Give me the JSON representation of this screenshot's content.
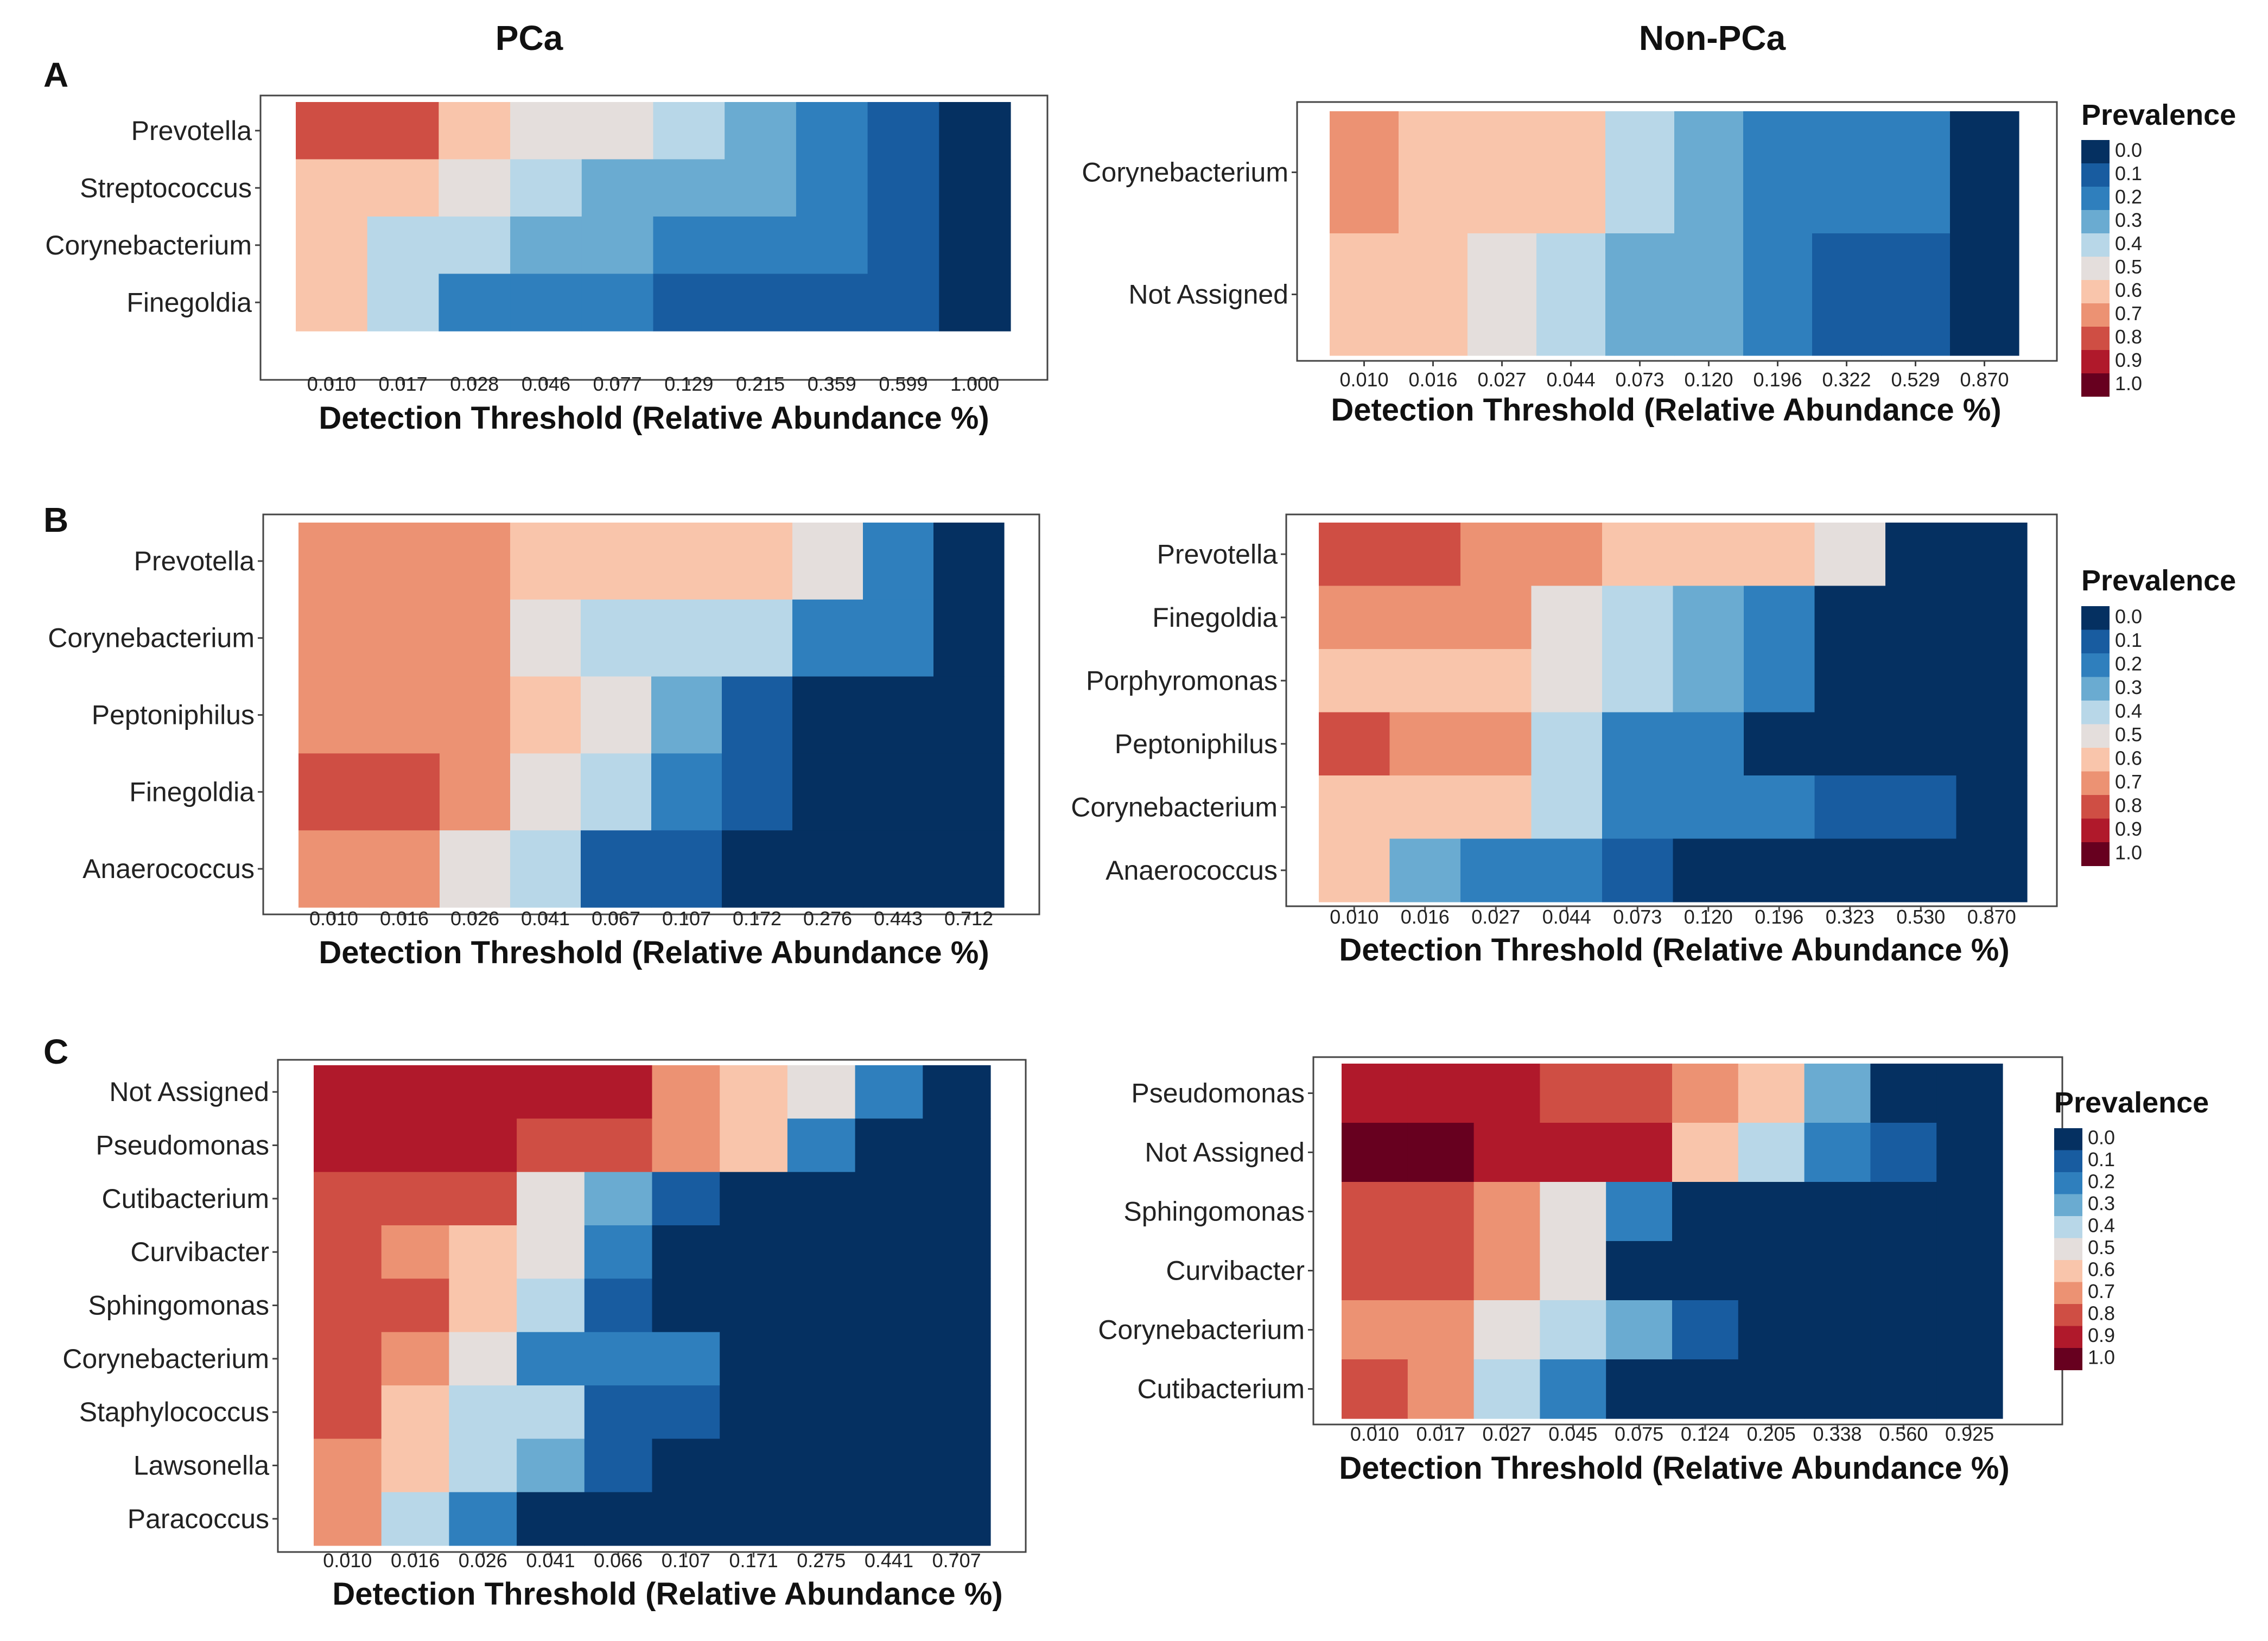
{
  "column_titles": [
    "PCa",
    "Non-PCa"
  ],
  "panel_letters": [
    "A",
    "B",
    "C"
  ],
  "palette": [
    "#053061",
    "#185ca0",
    "#2f7fbd",
    "#6aabd1",
    "#b8d7e8",
    "#e4dedc",
    "#f9c5ab",
    "#ec9273",
    "#cf4e44",
    "#b0192b",
    "#67001f"
  ],
  "chart_data": [
    {
      "type": "heatmap",
      "panel": "A",
      "group": "PCa",
      "xlabel": "Detection Threshold (Relative Abundance %)",
      "categories": [
        "0.010",
        "0.017",
        "0.028",
        "0.046",
        "0.077",
        "0.129",
        "0.215",
        "0.359",
        "0.599",
        "1.000"
      ],
      "rows": [
        "Prevotella",
        "Streptococcus",
        "Corynebacterium",
        "Finegoldia"
      ],
      "values": [
        [
          0.8,
          0.8,
          0.6,
          0.5,
          0.5,
          0.4,
          0.3,
          0.2,
          0.1,
          0.0
        ],
        [
          0.6,
          0.6,
          0.5,
          0.4,
          0.3,
          0.3,
          0.3,
          0.2,
          0.1,
          0.0
        ],
        [
          0.6,
          0.4,
          0.4,
          0.3,
          0.3,
          0.2,
          0.2,
          0.2,
          0.1,
          0.0
        ],
        [
          0.6,
          0.4,
          0.2,
          0.2,
          0.2,
          0.1,
          0.1,
          0.1,
          0.1,
          0.0
        ]
      ]
    },
    {
      "type": "heatmap",
      "panel": "A",
      "group": "Non-PCa",
      "xlabel": "Detection Threshold (Relative Abundance %)",
      "categories": [
        "0.010",
        "0.016",
        "0.027",
        "0.044",
        "0.073",
        "0.120",
        "0.196",
        "0.322",
        "0.529",
        "0.870"
      ],
      "rows": [
        "Corynebacterium",
        "Not Assigned"
      ],
      "values": [
        [
          0.7,
          0.6,
          0.6,
          0.6,
          0.4,
          0.3,
          0.2,
          0.2,
          0.2,
          0.0
        ],
        [
          0.6,
          0.6,
          0.5,
          0.4,
          0.3,
          0.3,
          0.2,
          0.1,
          0.1,
          0.0
        ]
      ],
      "legend": {
        "title": "Prevalence",
        "labels": [
          "0.0",
          "0.1",
          "0.2",
          "0.3",
          "0.4",
          "0.5",
          "0.6",
          "0.7",
          "0.8",
          "0.9",
          "1.0"
        ]
      }
    },
    {
      "type": "heatmap",
      "panel": "B",
      "group": "PCa",
      "xlabel": "Detection Threshold (Relative Abundance %)",
      "categories": [
        "0.010",
        "0.016",
        "0.026",
        "0.041",
        "0.067",
        "0.107",
        "0.172",
        "0.276",
        "0.443",
        "0.712"
      ],
      "rows": [
        "Prevotella",
        "Corynebacterium",
        "Peptoniphilus",
        "Finegoldia",
        "Anaerococcus"
      ],
      "values": [
        [
          0.7,
          0.7,
          0.7,
          0.6,
          0.6,
          0.6,
          0.6,
          0.5,
          0.2,
          0.0
        ],
        [
          0.7,
          0.7,
          0.7,
          0.5,
          0.4,
          0.4,
          0.4,
          0.2,
          0.2,
          0.0
        ],
        [
          0.7,
          0.7,
          0.7,
          0.6,
          0.5,
          0.3,
          0.1,
          0.0,
          0.0,
          0.0
        ],
        [
          0.8,
          0.8,
          0.7,
          0.5,
          0.4,
          0.2,
          0.1,
          0.0,
          0.0,
          0.0
        ],
        [
          0.7,
          0.7,
          0.5,
          0.4,
          0.1,
          0.1,
          0.0,
          0.0,
          0.0,
          0.0
        ]
      ]
    },
    {
      "type": "heatmap",
      "panel": "B",
      "group": "Non-PCa",
      "xlabel": "Detection Threshold (Relative Abundance %)",
      "categories": [
        "0.010",
        "0.016",
        "0.027",
        "0.044",
        "0.073",
        "0.120",
        "0.196",
        "0.323",
        "0.530",
        "0.870"
      ],
      "rows": [
        "Prevotella",
        "Finegoldia",
        "Porphyromonas",
        "Peptoniphilus",
        "Corynebacterium",
        "Anaerococcus"
      ],
      "values": [
        [
          0.8,
          0.8,
          0.7,
          0.7,
          0.6,
          0.6,
          0.6,
          0.5,
          0.0,
          0.0
        ],
        [
          0.7,
          0.7,
          0.7,
          0.5,
          0.4,
          0.3,
          0.2,
          0.0,
          0.0,
          0.0
        ],
        [
          0.6,
          0.6,
          0.6,
          0.5,
          0.4,
          0.3,
          0.2,
          0.0,
          0.0,
          0.0
        ],
        [
          0.8,
          0.7,
          0.7,
          0.4,
          0.2,
          0.2,
          0.0,
          0.0,
          0.0,
          0.0
        ],
        [
          0.6,
          0.6,
          0.6,
          0.4,
          0.2,
          0.2,
          0.2,
          0.1,
          0.1,
          0.0
        ],
        [
          0.6,
          0.3,
          0.2,
          0.2,
          0.1,
          0.0,
          0.0,
          0.0,
          0.0,
          0.0
        ]
      ],
      "legend": {
        "title": "Prevalence",
        "labels": [
          "0.0",
          "0.1",
          "0.2",
          "0.3",
          "0.4",
          "0.5",
          "0.6",
          "0.7",
          "0.8",
          "0.9",
          "1.0"
        ]
      }
    },
    {
      "type": "heatmap",
      "panel": "C",
      "group": "PCa",
      "xlabel": "Detection Threshold (Relative Abundance %)",
      "categories": [
        "0.010",
        "0.016",
        "0.026",
        "0.041",
        "0.066",
        "0.107",
        "0.171",
        "0.275",
        "0.441",
        "0.707"
      ],
      "rows": [
        "Not Assigned",
        "Pseudomonas",
        "Cutibacterium",
        "Curvibacter",
        "Sphingomonas",
        "Corynebacterium",
        "Staphylococcus",
        "Lawsonella",
        "Paracoccus"
      ],
      "values": [
        [
          0.9,
          0.9,
          0.9,
          0.9,
          0.9,
          0.7,
          0.6,
          0.5,
          0.2,
          0.0
        ],
        [
          0.9,
          0.9,
          0.9,
          0.8,
          0.8,
          0.7,
          0.6,
          0.2,
          0.0,
          0.0
        ],
        [
          0.8,
          0.8,
          0.8,
          0.5,
          0.3,
          0.1,
          0.0,
          0.0,
          0.0,
          0.0
        ],
        [
          0.8,
          0.7,
          0.6,
          0.5,
          0.2,
          0.0,
          0.0,
          0.0,
          0.0,
          0.0
        ],
        [
          0.8,
          0.8,
          0.6,
          0.4,
          0.1,
          0.0,
          0.0,
          0.0,
          0.0,
          0.0
        ],
        [
          0.8,
          0.7,
          0.5,
          0.2,
          0.2,
          0.2,
          0.0,
          0.0,
          0.0,
          0.0
        ],
        [
          0.8,
          0.6,
          0.4,
          0.4,
          0.1,
          0.1,
          0.0,
          0.0,
          0.0,
          0.0
        ],
        [
          0.7,
          0.6,
          0.4,
          0.3,
          0.1,
          0.0,
          0.0,
          0.0,
          0.0,
          0.0
        ],
        [
          0.7,
          0.4,
          0.2,
          0.0,
          0.0,
          0.0,
          0.0,
          0.0,
          0.0,
          0.0
        ]
      ]
    },
    {
      "type": "heatmap",
      "panel": "C",
      "group": "Non-PCa",
      "xlabel": "Detection Threshold (Relative Abundance %)",
      "categories": [
        "0.010",
        "0.017",
        "0.027",
        "0.045",
        "0.075",
        "0.124",
        "0.205",
        "0.338",
        "0.560",
        "0.925"
      ],
      "rows": [
        "Pseudomonas",
        "Not Assigned",
        "Sphingomonas",
        "Curvibacter",
        "Corynebacterium",
        "Cutibacterium"
      ],
      "values": [
        [
          0.9,
          0.9,
          0.9,
          0.8,
          0.8,
          0.7,
          0.6,
          0.3,
          0.0,
          0.0
        ],
        [
          1.0,
          1.0,
          0.9,
          0.9,
          0.9,
          0.6,
          0.4,
          0.2,
          0.1,
          0.0
        ],
        [
          0.8,
          0.8,
          0.7,
          0.5,
          0.2,
          0.0,
          0.0,
          0.0,
          0.0,
          0.0
        ],
        [
          0.8,
          0.8,
          0.7,
          0.5,
          0.0,
          0.0,
          0.0,
          0.0,
          0.0,
          0.0
        ],
        [
          0.7,
          0.7,
          0.5,
          0.4,
          0.3,
          0.1,
          0.0,
          0.0,
          0.0,
          0.0
        ],
        [
          0.8,
          0.7,
          0.4,
          0.2,
          0.0,
          0.0,
          0.0,
          0.0,
          0.0,
          0.0
        ]
      ],
      "legend": {
        "title": "Prevalence",
        "labels": [
          "0.0",
          "0.1",
          "0.2",
          "0.3",
          "0.4",
          "0.5",
          "0.6",
          "0.7",
          "0.8",
          "0.9",
          "1.0"
        ]
      }
    }
  ]
}
